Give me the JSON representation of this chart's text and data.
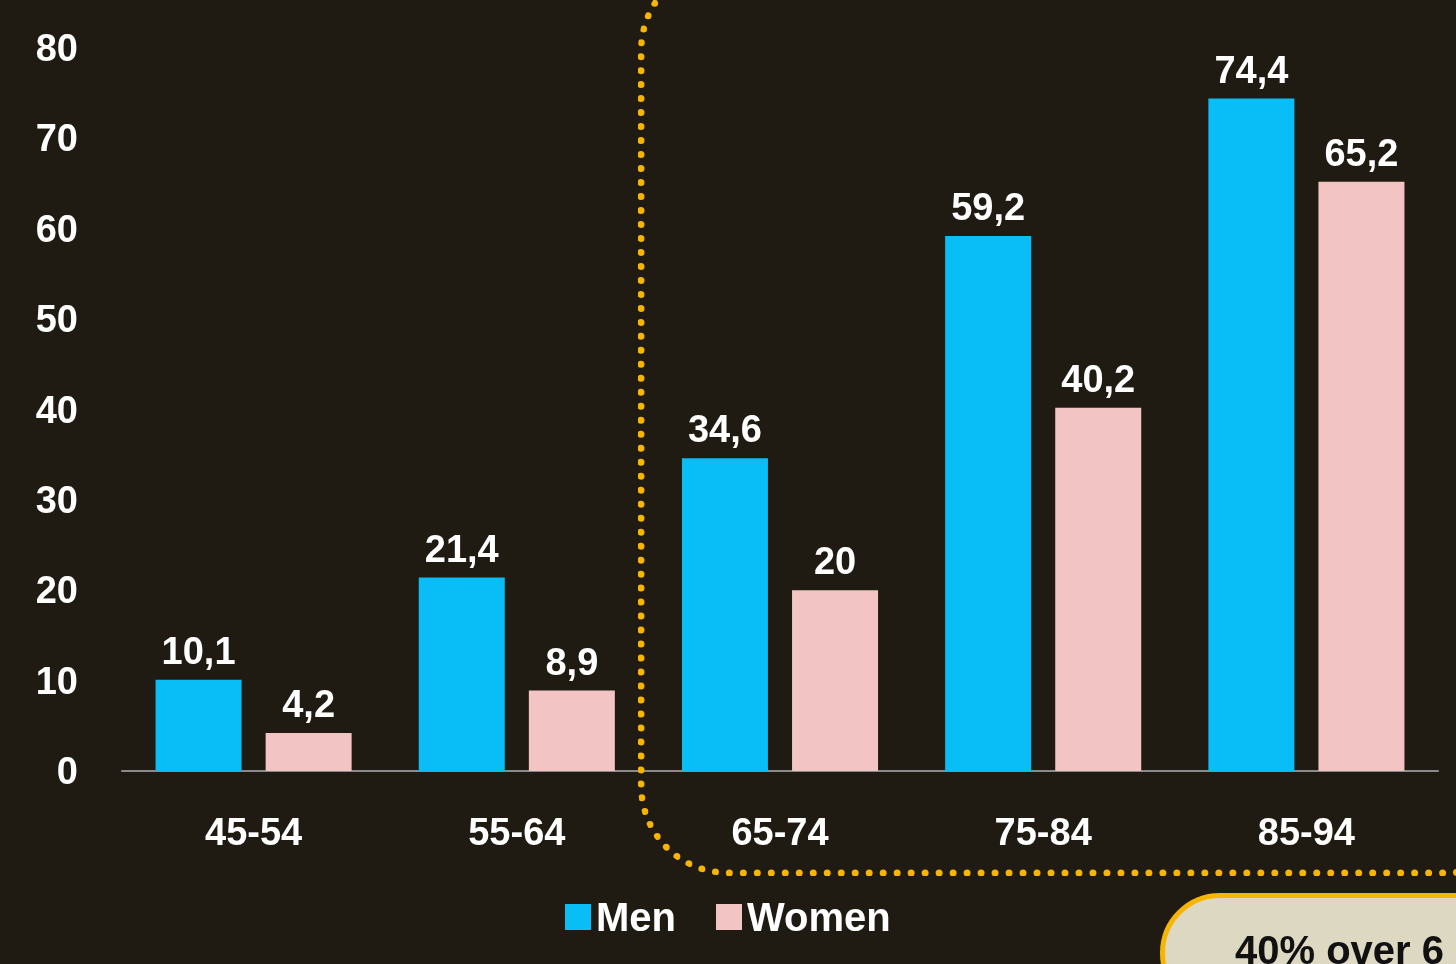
{
  "chart_data": {
    "type": "bar",
    "categories": [
      "45-54",
      "55-64",
      "65-74",
      "75-84",
      "85-94"
    ],
    "series": [
      {
        "name": "Men",
        "color": "#09bdf7",
        "values": [
          10.1,
          21.4,
          34.6,
          59.2,
          74.4
        ],
        "value_labels": [
          "10,1",
          "21,4",
          "34,6",
          "59,2",
          "74,4"
        ]
      },
      {
        "name": "Women",
        "color": "#f2c4c4",
        "values": [
          4.2,
          8.9,
          20,
          40.2,
          65.2
        ],
        "value_labels": [
          "4,2",
          "8,9",
          "20",
          "40,2",
          "65,2"
        ]
      }
    ],
    "ylim": [
      0,
      80
    ],
    "yticks": [
      0,
      10,
      20,
      30,
      40,
      50,
      60,
      70,
      80
    ],
    "grid": false,
    "legend": "bottom",
    "annotations": [
      "40% over 6"
    ]
  }
}
